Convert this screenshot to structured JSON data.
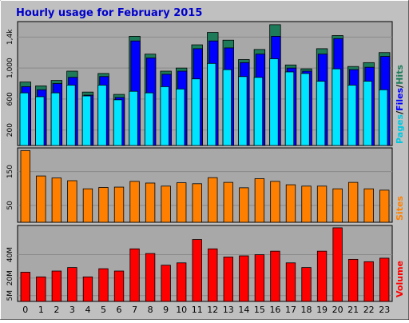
{
  "title": "Hourly usage for February 2015",
  "colors": {
    "background": "#C0C0C0",
    "plot_background": "#A8A8A8",
    "title": "#0000CC",
    "hits": "#1E7B5A",
    "files": "#0000FF",
    "pages": "#00E5FF",
    "sites": "#FF8000",
    "volume": "#FF0000"
  },
  "legend": {
    "pages": "Pages",
    "files": "Files",
    "hits": "Hits",
    "sep": "/",
    "sites": "Sites",
    "volume": "Volume"
  },
  "chart_data": [
    {
      "type": "bar",
      "name": "hits-files-pages",
      "categories": [
        "0",
        "1",
        "2",
        "3",
        "4",
        "5",
        "6",
        "7",
        "8",
        "9",
        "10",
        "11",
        "12",
        "13",
        "14",
        "15",
        "16",
        "17",
        "18",
        "19",
        "20",
        "21",
        "22",
        "23"
      ],
      "series": [
        {
          "name": "Hits",
          "values": [
            820,
            770,
            840,
            960,
            690,
            930,
            660,
            1410,
            1180,
            960,
            1000,
            1300,
            1460,
            1360,
            1110,
            1240,
            1560,
            1040,
            990,
            1250,
            1420,
            1020,
            1070,
            1200
          ]
        },
        {
          "name": "Files",
          "values": [
            760,
            720,
            800,
            880,
            650,
            890,
            620,
            1350,
            1130,
            920,
            960,
            1250,
            1350,
            1260,
            1070,
            1180,
            1410,
            1000,
            960,
            1180,
            1380,
            980,
            1010,
            1150
          ]
        },
        {
          "name": "Pages",
          "values": [
            680,
            630,
            680,
            780,
            640,
            780,
            590,
            700,
            680,
            760,
            730,
            860,
            1060,
            980,
            890,
            880,
            1120,
            950,
            930,
            830,
            990,
            780,
            830,
            720
          ]
        }
      ],
      "ylim": [
        0,
        1600
      ],
      "yticks": [
        "200",
        "600",
        "1,000",
        "1,4k"
      ],
      "ytick_values": [
        200,
        600,
        1000,
        1400
      ]
    },
    {
      "type": "bar",
      "name": "sites",
      "categories": [
        "0",
        "1",
        "2",
        "3",
        "4",
        "5",
        "6",
        "7",
        "8",
        "9",
        "10",
        "11",
        "12",
        "13",
        "14",
        "15",
        "16",
        "17",
        "18",
        "19",
        "20",
        "21",
        "22",
        "23"
      ],
      "series": [
        {
          "name": "Sites",
          "values": [
            212,
            137,
            131,
            123,
            99,
            103,
            104,
            121,
            116,
            107,
            117,
            114,
            132,
            118,
            102,
            129,
            121,
            111,
            107,
            107,
            99,
            118,
            99,
            95
          ]
        }
      ],
      "ylim": [
        0,
        220
      ],
      "yticks": [
        "50",
        "150"
      ],
      "ytick_values": [
        50,
        150
      ]
    },
    {
      "type": "bar",
      "name": "volume",
      "categories": [
        "0",
        "1",
        "2",
        "3",
        "4",
        "5",
        "6",
        "7",
        "8",
        "9",
        "10",
        "11",
        "12",
        "13",
        "14",
        "15",
        "16",
        "17",
        "18",
        "19",
        "20",
        "21",
        "22",
        "23"
      ],
      "series": [
        {
          "name": "Volume",
          "values": [
            25,
            21,
            26,
            29,
            21,
            28,
            26,
            45,
            41,
            31,
            33,
            53,
            45,
            38,
            39,
            40,
            43,
            33,
            29,
            43,
            63,
            36,
            34,
            37
          ]
        }
      ],
      "ylim": [
        0,
        65
      ],
      "yticks": [
        "5M",
        "20M",
        "40M"
      ],
      "ytick_values": [
        5,
        20,
        40
      ]
    }
  ]
}
